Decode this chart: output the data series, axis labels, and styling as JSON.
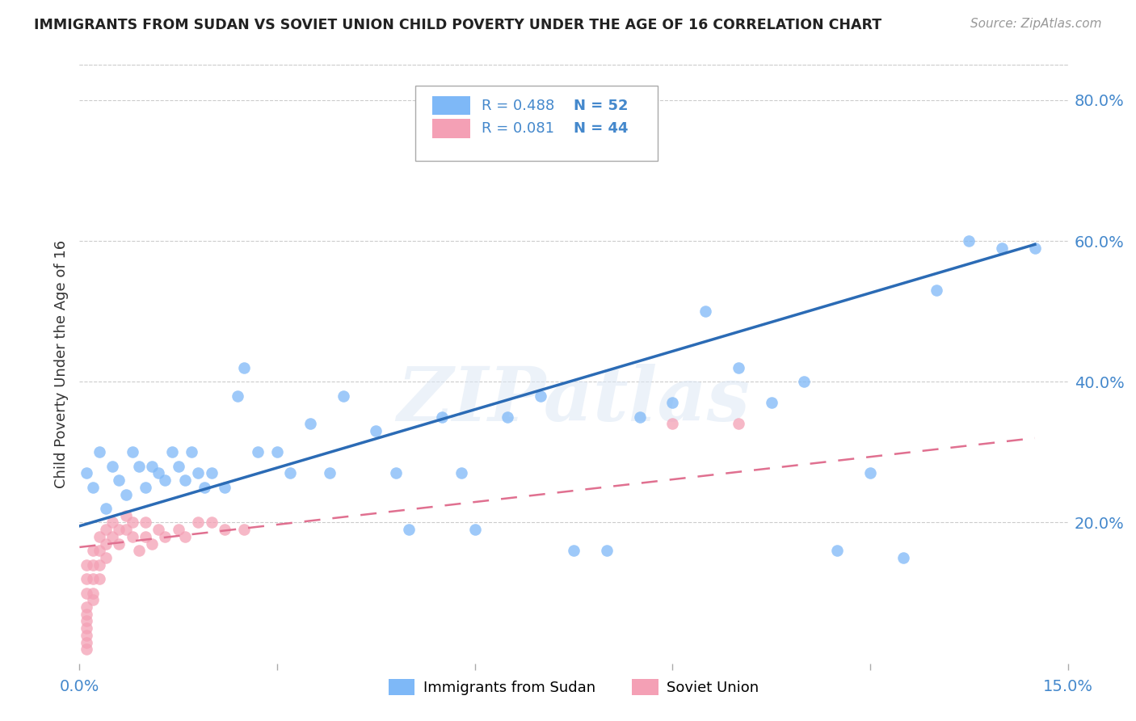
{
  "title": "IMMIGRANTS FROM SUDAN VS SOVIET UNION CHILD POVERTY UNDER THE AGE OF 16 CORRELATION CHART",
  "source": "Source: ZipAtlas.com",
  "ylabel": "Child Poverty Under the Age of 16",
  "xlim": [
    0.0,
    0.15
  ],
  "ylim": [
    0.0,
    0.85
  ],
  "ytick_vals": [
    0.0,
    0.2,
    0.4,
    0.6,
    0.8
  ],
  "ytick_labels": [
    "",
    "20.0%",
    "40.0%",
    "60.0%",
    "80.0%"
  ],
  "sudan_R": 0.488,
  "sudan_N": 52,
  "soviet_R": 0.081,
  "soviet_N": 44,
  "sudan_color": "#7eb8f7",
  "soviet_color": "#f4a0b5",
  "sudan_line_color": "#2b6bb5",
  "soviet_line_color": "#e07090",
  "watermark_text": "ZIPatlas",
  "background_color": "#ffffff",
  "grid_color": "#cccccc",
  "sudan_x": [
    0.001,
    0.002,
    0.003,
    0.004,
    0.005,
    0.006,
    0.007,
    0.008,
    0.009,
    0.01,
    0.011,
    0.012,
    0.013,
    0.014,
    0.015,
    0.016,
    0.017,
    0.018,
    0.019,
    0.02,
    0.022,
    0.024,
    0.025,
    0.027,
    0.03,
    0.032,
    0.035,
    0.038,
    0.04,
    0.045,
    0.048,
    0.05,
    0.055,
    0.058,
    0.06,
    0.065,
    0.07,
    0.075,
    0.08,
    0.085,
    0.09,
    0.095,
    0.1,
    0.105,
    0.11,
    0.115,
    0.12,
    0.125,
    0.13,
    0.135,
    0.14,
    0.145
  ],
  "sudan_y": [
    0.27,
    0.25,
    0.3,
    0.22,
    0.28,
    0.26,
    0.24,
    0.3,
    0.28,
    0.25,
    0.28,
    0.27,
    0.26,
    0.3,
    0.28,
    0.26,
    0.3,
    0.27,
    0.25,
    0.27,
    0.25,
    0.38,
    0.42,
    0.3,
    0.3,
    0.27,
    0.34,
    0.27,
    0.38,
    0.33,
    0.27,
    0.19,
    0.35,
    0.27,
    0.19,
    0.35,
    0.38,
    0.16,
    0.16,
    0.35,
    0.37,
    0.5,
    0.42,
    0.37,
    0.4,
    0.16,
    0.27,
    0.15,
    0.53,
    0.6,
    0.59,
    0.59
  ],
  "soviet_x": [
    0.001,
    0.001,
    0.001,
    0.001,
    0.001,
    0.001,
    0.001,
    0.001,
    0.001,
    0.001,
    0.002,
    0.002,
    0.002,
    0.002,
    0.002,
    0.003,
    0.003,
    0.003,
    0.003,
    0.004,
    0.004,
    0.004,
    0.005,
    0.005,
    0.006,
    0.006,
    0.007,
    0.007,
    0.008,
    0.008,
    0.009,
    0.01,
    0.01,
    0.011,
    0.012,
    0.013,
    0.015,
    0.016,
    0.018,
    0.02,
    0.022,
    0.025,
    0.09,
    0.1
  ],
  "soviet_y": [
    0.14,
    0.12,
    0.1,
    0.08,
    0.07,
    0.06,
    0.05,
    0.04,
    0.03,
    0.02,
    0.16,
    0.14,
    0.12,
    0.1,
    0.09,
    0.18,
    0.16,
    0.14,
    0.12,
    0.19,
    0.17,
    0.15,
    0.2,
    0.18,
    0.19,
    0.17,
    0.21,
    0.19,
    0.2,
    0.18,
    0.16,
    0.2,
    0.18,
    0.17,
    0.19,
    0.18,
    0.19,
    0.18,
    0.2,
    0.2,
    0.19,
    0.19,
    0.34,
    0.34
  ],
  "sudan_line_x": [
    0.0,
    0.145
  ],
  "sudan_line_y": [
    0.195,
    0.595
  ],
  "soviet_line_x": [
    0.0,
    0.145
  ],
  "soviet_line_y": [
    0.165,
    0.32
  ]
}
